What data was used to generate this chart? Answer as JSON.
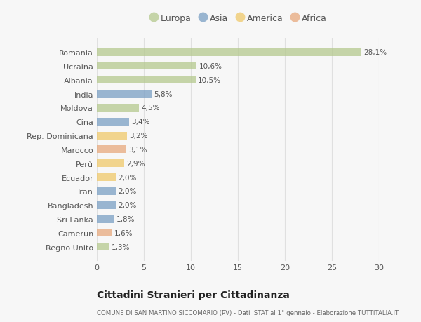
{
  "countries": [
    "Romania",
    "Ucraina",
    "Albania",
    "India",
    "Moldova",
    "Cina",
    "Rep. Dominicana",
    "Marocco",
    "Perù",
    "Ecuador",
    "Iran",
    "Bangladesh",
    "Sri Lanka",
    "Camerun",
    "Regno Unito"
  ],
  "values": [
    28.1,
    10.6,
    10.5,
    5.8,
    4.5,
    3.4,
    3.2,
    3.1,
    2.9,
    2.0,
    2.0,
    2.0,
    1.8,
    1.6,
    1.3
  ],
  "labels": [
    "28,1%",
    "10,6%",
    "10,5%",
    "5,8%",
    "4,5%",
    "3,4%",
    "3,2%",
    "3,1%",
    "2,9%",
    "2,0%",
    "2,0%",
    "2,0%",
    "1,8%",
    "1,6%",
    "1,3%"
  ],
  "continents": [
    "Europa",
    "Europa",
    "Europa",
    "Asia",
    "Europa",
    "Asia",
    "America",
    "Africa",
    "America",
    "America",
    "Asia",
    "Asia",
    "Asia",
    "Africa",
    "Europa"
  ],
  "continent_colors": {
    "Europa": "#b5c98e",
    "Asia": "#7a9fc4",
    "America": "#f0c96a",
    "Africa": "#e8a87c"
  },
  "legend_order": [
    "Europa",
    "Asia",
    "America",
    "Africa"
  ],
  "title": "Cittadini Stranieri per Cittadinanza",
  "subtitle": "COMUNE DI SAN MARTINO SICCOMARIO (PV) - Dati ISTAT al 1° gennaio - Elaborazione TUTTITALIA.IT",
  "xlim": [
    0,
    30
  ],
  "xticks": [
    0,
    5,
    10,
    15,
    20,
    25,
    30
  ],
  "background_color": "#f7f7f7",
  "grid_color": "#e0e0e0",
  "bar_alpha": 0.75
}
